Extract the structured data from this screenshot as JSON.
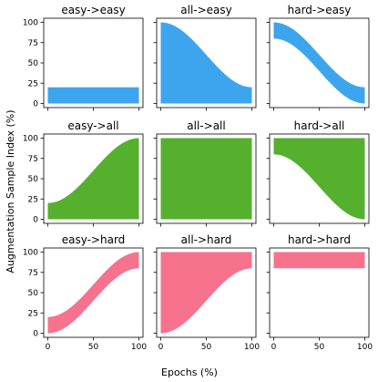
{
  "chart_data": {
    "type": "area",
    "ylabel": "Augmentation Sample Index (%)",
    "xlabel": "Epochs (%)",
    "xlim": [
      0,
      100
    ],
    "ylim": [
      0,
      100
    ],
    "xticks": [
      0,
      50,
      100
    ],
    "yticks": [
      0,
      25,
      50,
      75,
      100
    ],
    "grid": false,
    "colors": {
      "easy": "#3da5ee",
      "all": "#55b02e",
      "hard": "#f7728c"
    },
    "panels": [
      {
        "title": "easy->easy",
        "source": "easy",
        "target": "easy",
        "lower_start": 0,
        "lower_end": 0,
        "upper_start": 20,
        "upper_end": 20
      },
      {
        "title": "all->easy",
        "source": "all",
        "target": "easy",
        "lower_start": 0,
        "lower_end": 0,
        "upper_start": 100,
        "upper_end": 20
      },
      {
        "title": "hard->easy",
        "source": "hard",
        "target": "easy",
        "lower_start": 80,
        "lower_end": 0,
        "upper_start": 100,
        "upper_end": 20
      },
      {
        "title": "easy->all",
        "source": "easy",
        "target": "all",
        "lower_start": 0,
        "lower_end": 0,
        "upper_start": 20,
        "upper_end": 100
      },
      {
        "title": "all->all",
        "source": "all",
        "target": "all",
        "lower_start": 0,
        "lower_end": 0,
        "upper_start": 100,
        "upper_end": 100
      },
      {
        "title": "hard->all",
        "source": "hard",
        "target": "all",
        "lower_start": 80,
        "lower_end": 0,
        "upper_start": 100,
        "upper_end": 100
      },
      {
        "title": "easy->hard",
        "source": "easy",
        "target": "hard",
        "lower_start": 0,
        "lower_end": 80,
        "upper_start": 20,
        "upper_end": 100
      },
      {
        "title": "all->hard",
        "source": "all",
        "target": "hard",
        "lower_start": 0,
        "lower_end": 80,
        "upper_start": 100,
        "upper_end": 100
      },
      {
        "title": "hard->hard",
        "source": "hard",
        "target": "hard",
        "lower_start": 80,
        "lower_end": 80,
        "upper_start": 100,
        "upper_end": 100
      }
    ]
  }
}
